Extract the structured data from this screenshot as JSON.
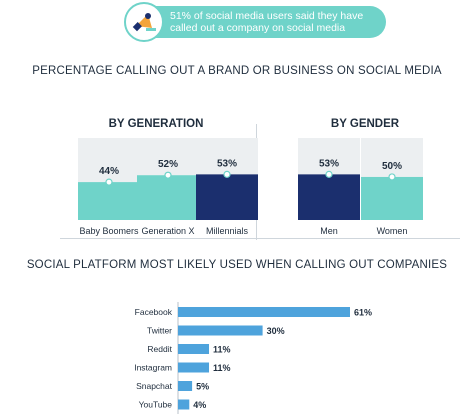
{
  "banner": {
    "text": "51% of social media users said they have called out a company on social media",
    "icon": "megaphone-icon"
  },
  "colors": {
    "teal": "#6fd3c9",
    "navy": "#1b2f6e",
    "track": "#eceff1",
    "blue": "#4ea3dc"
  },
  "chart_data": [
    {
      "type": "bar",
      "title": "PERCENTAGE CALLING OUT A BRAND OR BUSINESS ON SOCIAL MEDIA",
      "subtitle": "BY GENERATION",
      "categories": [
        "Baby Boomers",
        "Generation X",
        "Millennials"
      ],
      "values": [
        44,
        52,
        53
      ],
      "labels": [
        "44%",
        "52%",
        "53%"
      ],
      "highlight": "Millennials"
    },
    {
      "type": "bar",
      "subtitle": "BY GENDER",
      "categories": [
        "Men",
        "Women"
      ],
      "values": [
        53,
        50
      ],
      "labels": [
        "53%",
        "50%"
      ],
      "highlight": "Men"
    },
    {
      "type": "bar",
      "orientation": "horizontal",
      "title": "SOCIAL PLATFORM MOST LIKELY USED WHEN CALLING OUT COMPANIES",
      "categories": [
        "Facebook",
        "Twitter",
        "Reddit",
        "Instagram",
        "Snapchat",
        "YouTube"
      ],
      "values": [
        61,
        30,
        11,
        11,
        5,
        4
      ],
      "labels": [
        "61%",
        "30%",
        "11%",
        "11%",
        "5%",
        "4%"
      ]
    }
  ]
}
